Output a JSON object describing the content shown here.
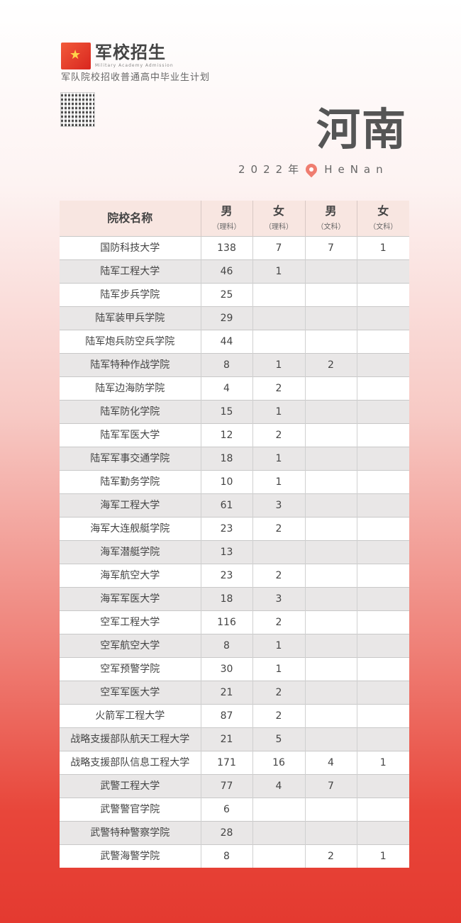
{
  "logo": {
    "title": "军校招生",
    "subtitle": "Military Academy Admission"
  },
  "subtitle": "军队院校招收普通高中毕业生计划",
  "province": "河南",
  "year": "2022年",
  "province_pinyin": "HeNan",
  "colors": {
    "accent": "#e8463a",
    "header_bg": "#f8e6e1",
    "row_alt": "#e9e7e7"
  },
  "table": {
    "headers": [
      {
        "label": "院校名称",
        "sub": ""
      },
      {
        "label": "男",
        "sub": "（理科）"
      },
      {
        "label": "女",
        "sub": "（理科）"
      },
      {
        "label": "男",
        "sub": "（文科）"
      },
      {
        "label": "女",
        "sub": "（文科）"
      }
    ],
    "rows": [
      [
        "国防科技大学",
        "138",
        "7",
        "7",
        "1"
      ],
      [
        "陆军工程大学",
        "46",
        "1",
        "",
        ""
      ],
      [
        "陆军步兵学院",
        "25",
        "",
        "",
        ""
      ],
      [
        "陆军装甲兵学院",
        "29",
        "",
        "",
        ""
      ],
      [
        "陆军炮兵防空兵学院",
        "44",
        "",
        "",
        ""
      ],
      [
        "陆军特种作战学院",
        "8",
        "1",
        "2",
        ""
      ],
      [
        "陆军边海防学院",
        "4",
        "2",
        "",
        ""
      ],
      [
        "陆军防化学院",
        "15",
        "1",
        "",
        ""
      ],
      [
        "陆军军医大学",
        "12",
        "2",
        "",
        ""
      ],
      [
        "陆军军事交通学院",
        "18",
        "1",
        "",
        ""
      ],
      [
        "陆军勤务学院",
        "10",
        "1",
        "",
        ""
      ],
      [
        "海军工程大学",
        "61",
        "3",
        "",
        ""
      ],
      [
        "海军大连舰艇学院",
        "23",
        "2",
        "",
        ""
      ],
      [
        "海军潜艇学院",
        "13",
        "",
        "",
        ""
      ],
      [
        "海军航空大学",
        "23",
        "2",
        "",
        ""
      ],
      [
        "海军军医大学",
        "18",
        "3",
        "",
        ""
      ],
      [
        "空军工程大学",
        "116",
        "2",
        "",
        ""
      ],
      [
        "空军航空大学",
        "8",
        "1",
        "",
        ""
      ],
      [
        "空军预警学院",
        "30",
        "1",
        "",
        ""
      ],
      [
        "空军军医大学",
        "21",
        "2",
        "",
        ""
      ],
      [
        "火箭军工程大学",
        "87",
        "2",
        "",
        ""
      ],
      [
        "战略支援部队航天工程大学",
        "21",
        "5",
        "",
        ""
      ],
      [
        "战略支援部队信息工程大学",
        "171",
        "16",
        "4",
        "1"
      ],
      [
        "武警工程大学",
        "77",
        "4",
        "7",
        ""
      ],
      [
        "武警警官学院",
        "6",
        "",
        "",
        ""
      ],
      [
        "武警特种警察学院",
        "28",
        "",
        "",
        ""
      ],
      [
        "武警海警学院",
        "8",
        "",
        "2",
        "1"
      ]
    ]
  }
}
